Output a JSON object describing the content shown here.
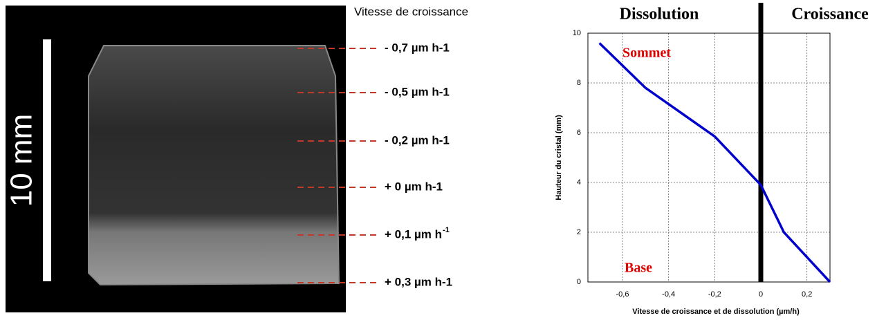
{
  "photo": {
    "scale_label": "10 mm",
    "title": "Vitesse de croissance",
    "labels": [
      {
        "text": "- 0,7 µm h-1"
      },
      {
        "text": "- 0,5 µm h-1"
      },
      {
        "text": "- 0,2 µm h-1"
      },
      {
        "text": "+ 0 µm h-1"
      },
      {
        "text": "+ 0,1 µm h",
        "sup": "-1"
      },
      {
        "text": "+ 0,3 µm h-1"
      }
    ]
  },
  "chart_data": {
    "type": "line",
    "headings": [
      "Dissolution",
      "Croissance"
    ],
    "annotations": [
      "Sommet",
      "Base"
    ],
    "xlabel": "Vitesse de croissance et de dissolution (µm/h)",
    "ylabel": "Hauteur du cristal (mm)",
    "x": [
      -0.7,
      -0.5,
      -0.2,
      0,
      0.1,
      0.3
    ],
    "series": [
      {
        "color": "#0000cc",
        "values": [
          9.6,
          7.8,
          5.85,
          3.9,
          2,
          0
        ]
      }
    ],
    "vline_x": 0,
    "xlim": [
      -0.75,
      0.3
    ],
    "xticks": [
      {
        "value": -0.6,
        "label": "-0,6"
      },
      {
        "value": -0.4,
        "label": "-0,4"
      },
      {
        "value": -0.2,
        "label": "-0,2"
      },
      0,
      {
        "value": 0.2,
        "label": "0,2"
      }
    ],
    "ylim": [
      0,
      10
    ],
    "yticks": [
      0,
      2,
      4,
      6,
      8,
      10
    ],
    "grid": true
  }
}
